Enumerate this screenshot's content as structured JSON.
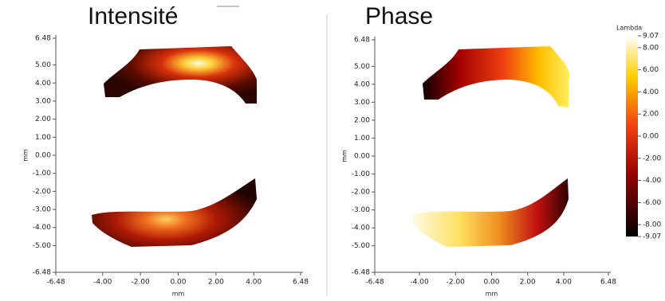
{
  "chart_data": [
    {
      "type": "heatmap",
      "title": "Intensité",
      "xlabel": "mm",
      "ylabel": "mm",
      "xlim": [
        -6.48,
        6.48
      ],
      "ylim": [
        -6.48,
        6.48
      ],
      "xticks": [
        -6.48,
        {
          "value": -4,
          "label": "-4.00"
        },
        {
          "value": -2,
          "label": "-2.00"
        },
        {
          "value": 0,
          "label": "0.00"
        },
        {
          "value": 2,
          "label": "2.00"
        },
        {
          "value": 4,
          "label": "4.00"
        },
        6.48
      ],
      "yticks": [
        6.48,
        {
          "value": 5,
          "label": "5.00"
        },
        {
          "value": 4,
          "label": "4.00"
        },
        {
          "value": 3,
          "label": "3.00"
        },
        {
          "value": 2,
          "label": "2.00"
        },
        {
          "value": 1,
          "label": "1.00"
        },
        {
          "value": 0,
          "label": "0.00"
        },
        {
          "value": -1,
          "label": "-1.00"
        },
        {
          "value": -2,
          "label": "-2.00"
        },
        {
          "value": -3,
          "label": "-3.00"
        },
        {
          "value": -4,
          "label": "-4.00"
        },
        {
          "value": -5,
          "label": "-5.00"
        },
        -6.48
      ]
    },
    {
      "type": "heatmap",
      "title": "Phase",
      "xlabel": "mm",
      "ylabel": "mm",
      "xlim": [
        -6.48,
        6.48
      ],
      "ylim": [
        -6.48,
        6.48
      ],
      "xticks": [
        -6.48,
        {
          "value": -4,
          "label": "-4.00"
        },
        {
          "value": -2,
          "label": "-2.00"
        },
        {
          "value": 0,
          "label": "0.00"
        },
        {
          "value": 2,
          "label": "2.00"
        },
        {
          "value": 4,
          "label": "4.00"
        },
        6.48
      ],
      "yticks": [
        6.48,
        {
          "value": 5,
          "label": "5.00"
        },
        {
          "value": 4,
          "label": "4.00"
        },
        {
          "value": 3,
          "label": "3.00"
        },
        {
          "value": 2,
          "label": "2.00"
        },
        {
          "value": 1,
          "label": "1.00"
        },
        {
          "value": 0,
          "label": "0.00"
        },
        {
          "value": -1,
          "label": "-1.00"
        },
        {
          "value": -2,
          "label": "-2.00"
        },
        {
          "value": -3,
          "label": "-3.00"
        },
        {
          "value": -4,
          "label": "-4.00"
        },
        {
          "value": -5,
          "label": "-5.00"
        },
        -6.48
      ],
      "colorbar": {
        "label": "Lambda",
        "lim": [
          -9.07,
          9.07
        ],
        "ticks": [
          9.07,
          {
            "value": 8,
            "label": "8.00"
          },
          {
            "value": 6,
            "label": "6.00"
          },
          {
            "value": 4,
            "label": "4.00"
          },
          {
            "value": 2,
            "label": "2.00"
          },
          {
            "value": 0,
            "label": "0.00"
          },
          {
            "value": -2,
            "label": "-2.00"
          },
          {
            "value": -4,
            "label": "-4.00"
          },
          {
            "value": -6,
            "label": "-6.00"
          },
          {
            "value": -8,
            "label": "-8.00"
          },
          -9.07
        ]
      }
    }
  ]
}
